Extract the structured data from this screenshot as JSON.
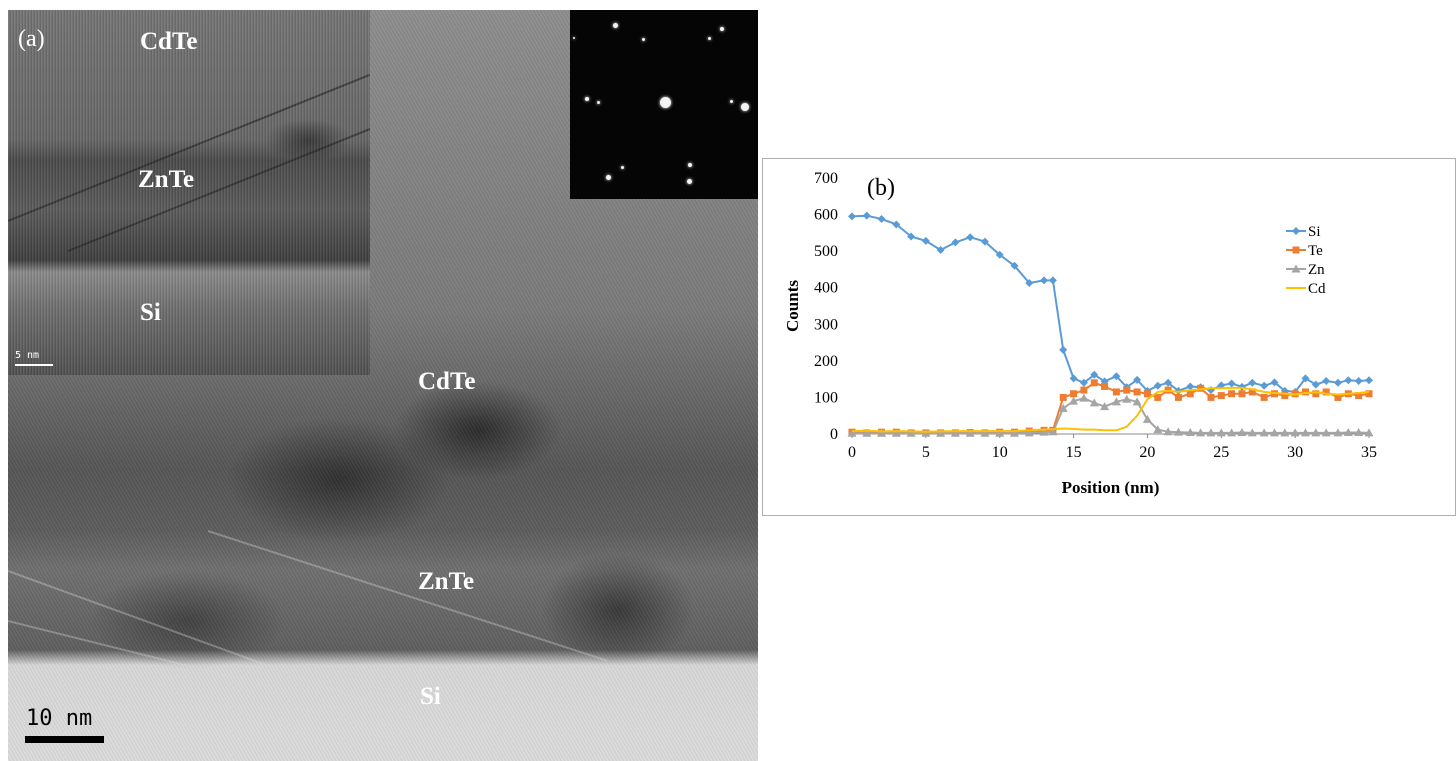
{
  "figure": {
    "panel_a": {
      "letter": "(a)",
      "main_labels": {
        "cdte": "CdTe",
        "znte": "ZnTe",
        "si": "Si"
      },
      "inset_labels": {
        "cdte": "CdTe",
        "znte": "ZnTe",
        "si": "Si"
      },
      "main_scale": "10 nm",
      "inset_scale": "5 nm"
    },
    "panel_b": {
      "letter": "(b)"
    }
  },
  "chart_data": {
    "type": "line",
    "title": "",
    "xlabel": "Position (nm)",
    "ylabel": "Counts",
    "xlim": [
      0,
      35
    ],
    "ylim": [
      0,
      700
    ],
    "xticks": [
      "0",
      "5",
      "10",
      "15",
      "20",
      "25",
      "30",
      "35"
    ],
    "yticks": [
      "0",
      "100",
      "200",
      "300",
      "400",
      "500",
      "600",
      "700"
    ],
    "grid": false,
    "legend_position": "right",
    "series": [
      {
        "name": "Si",
        "color": "#5b9bd5",
        "marker": "diamond",
        "x": [
          0,
          1,
          2,
          3,
          4,
          5,
          6,
          7,
          8,
          9,
          10,
          11,
          12,
          13,
          13.6,
          14.3,
          15,
          15.7,
          16.4,
          17.1,
          17.9,
          18.6,
          19.3,
          20,
          20.7,
          21.4,
          22.1,
          22.9,
          23.6,
          24.3,
          25,
          25.7,
          26.4,
          27.1,
          27.9,
          28.6,
          29.3,
          30,
          30.7,
          31.4,
          32.1,
          32.9,
          33.6,
          34.3,
          35
        ],
        "y": [
          595,
          597,
          588,
          573,
          540,
          528,
          503,
          524,
          538,
          526,
          490,
          460,
          413,
          420,
          420,
          230,
          152,
          140,
          162,
          144,
          158,
          128,
          148,
          118,
          132,
          140,
          118,
          130,
          128,
          120,
          133,
          138,
          129,
          140,
          132,
          141,
          118,
          115,
          152,
          135,
          145,
          140,
          147,
          145,
          147
        ]
      },
      {
        "name": "Te",
        "color": "#ed7d31",
        "marker": "square",
        "x": [
          0,
          1,
          2,
          3,
          4,
          5,
          6,
          7,
          8,
          9,
          10,
          11,
          12,
          13,
          13.6,
          14.3,
          15,
          15.7,
          16.4,
          17.1,
          17.9,
          18.6,
          19.3,
          20,
          20.7,
          21.4,
          22.1,
          22.9,
          23.6,
          24.3,
          25,
          25.7,
          26.4,
          27.1,
          27.9,
          28.6,
          29.3,
          30,
          30.7,
          31.4,
          32.1,
          32.9,
          33.6,
          34.3,
          35
        ],
        "y": [
          5,
          3,
          5,
          5,
          3,
          3,
          3,
          3,
          4,
          3,
          5,
          5,
          8,
          10,
          10,
          100,
          110,
          120,
          140,
          130,
          115,
          120,
          115,
          110,
          100,
          120,
          100,
          110,
          125,
          100,
          105,
          110,
          110,
          115,
          100,
          110,
          105,
          110,
          115,
          110,
          115,
          100,
          110,
          105,
          110
        ]
      },
      {
        "name": "Zn",
        "color": "#a5a5a5",
        "marker": "triangle",
        "x": [
          0,
          1,
          2,
          3,
          4,
          5,
          6,
          7,
          8,
          9,
          10,
          11,
          12,
          13,
          13.6,
          14.3,
          15,
          15.7,
          16.4,
          17.1,
          17.9,
          18.6,
          19.3,
          20,
          20.7,
          21.4,
          22.1,
          22.9,
          23.6,
          24.3,
          25,
          25.7,
          26.4,
          27.1,
          27.9,
          28.6,
          29.3,
          30,
          30.7,
          31.4,
          32.1,
          32.9,
          33.6,
          34.3,
          35
        ],
        "y": [
          2,
          2,
          2,
          2,
          2,
          2,
          2,
          2,
          2,
          2,
          2,
          2,
          3,
          5,
          6,
          70,
          90,
          98,
          85,
          75,
          88,
          95,
          88,
          40,
          12,
          6,
          5,
          4,
          3,
          3,
          3,
          3,
          4,
          3,
          3,
          3,
          3,
          3,
          3,
          3,
          3,
          3,
          4,
          4,
          3
        ]
      },
      {
        "name": "Cd",
        "color": "#ffc000",
        "marker": "none",
        "x": [
          0,
          1,
          2,
          3,
          4,
          5,
          6,
          7,
          8,
          9,
          10,
          11,
          12,
          13,
          13.6,
          14.3,
          15,
          15.7,
          16.4,
          17.1,
          17.9,
          18.6,
          19.3,
          20,
          20.7,
          21.4,
          22.1,
          22.9,
          23.6,
          24.3,
          25,
          25.7,
          26.4,
          27.1,
          27.9,
          28.6,
          29.3,
          30,
          30.7,
          31.4,
          32.1,
          32.9,
          33.6,
          34.3,
          35
        ],
        "y": [
          8,
          9,
          7,
          8,
          7,
          6,
          7,
          8,
          8,
          8,
          8,
          8,
          10,
          12,
          13,
          15,
          14,
          12,
          12,
          10,
          10,
          20,
          50,
          95,
          115,
          118,
          115,
          120,
          122,
          125,
          125,
          126,
          126,
          122,
          115,
          112,
          110,
          108,
          112,
          114,
          110,
          108,
          110,
          112,
          115
        ]
      }
    ]
  }
}
